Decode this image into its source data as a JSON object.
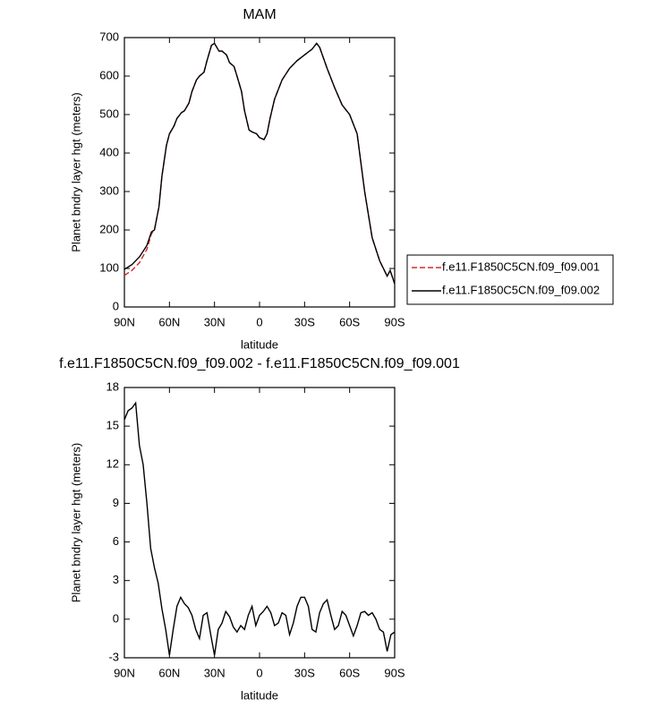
{
  "chart_data": [
    {
      "type": "line",
      "title": "MAM",
      "xlabel": "latitude",
      "ylabel": "Planet bndry layer hgt (meters)",
      "x": [
        90,
        85,
        80,
        75,
        72,
        70,
        67,
        65,
        62,
        60,
        57,
        55,
        52,
        50,
        47,
        45,
        42,
        40,
        37,
        35,
        32,
        30,
        27,
        25,
        22,
        20,
        17,
        15,
        12,
        10,
        7,
        5,
        2,
        0,
        -3,
        -5,
        -7,
        -10,
        -15,
        -20,
        -25,
        -30,
        -35,
        -38,
        -40,
        -45,
        -50,
        -55,
        -60,
        -65,
        -70,
        -75,
        -80,
        -85,
        -87,
        -90
      ],
      "series": [
        {
          "name": "f.e11.F1850C5CN.f09_f09.001",
          "color": "#d42a2a",
          "dash": "dashed",
          "values": [
            82,
            95,
            115,
            150,
            190,
            200,
            260,
            340,
            420,
            450,
            470,
            490,
            505,
            510,
            530,
            560,
            590,
            600,
            610,
            640,
            680,
            685,
            665,
            665,
            655,
            635,
            625,
            600,
            560,
            510,
            460,
            455,
            450,
            440,
            435,
            450,
            490,
            540,
            590,
            620,
            640,
            655,
            670,
            685,
            675,
            620,
            570,
            525,
            500,
            450,
            300,
            180,
            120,
            80,
            95,
            60
          ]
        },
        {
          "name": "f.e11.F1850C5CN.f09_f09.002",
          "color": "#000000",
          "dash": "solid",
          "values": [
            98,
            110,
            130,
            160,
            195,
            200,
            260,
            340,
            420,
            450,
            470,
            490,
            505,
            510,
            530,
            560,
            590,
            600,
            610,
            640,
            680,
            685,
            665,
            665,
            655,
            635,
            625,
            600,
            560,
            510,
            460,
            455,
            450,
            440,
            435,
            450,
            490,
            540,
            590,
            620,
            640,
            655,
            670,
            685,
            675,
            620,
            570,
            525,
            500,
            450,
            300,
            180,
            120,
            80,
            95,
            60
          ]
        }
      ],
      "xlim": [
        90,
        -90
      ],
      "xticks": [
        {
          "value": 90,
          "label": "90N"
        },
        {
          "value": 60,
          "label": "60N"
        },
        {
          "value": 30,
          "label": "30N"
        },
        0,
        {
          "value": -30,
          "label": "30S"
        },
        {
          "value": -60,
          "label": "60S"
        },
        {
          "value": -90,
          "label": "90S"
        }
      ],
      "ylim": [
        0,
        700
      ],
      "yticks": [
        0,
        100,
        200,
        300,
        400,
        500,
        600,
        700
      ],
      "legend": "right"
    },
    {
      "type": "line",
      "title": "f.e11.F1850C5CN.f09_f09.002 - f.e11.F1850C5CN.f09_f09.001",
      "xlabel": "latitude",
      "ylabel": "Planet bndry layer hgt (meters)",
      "x": [
        90,
        87.5,
        85,
        82.5,
        80,
        77.5,
        75,
        72.5,
        70,
        67.5,
        65,
        62.5,
        60,
        57.5,
        55,
        52.5,
        50,
        47.5,
        45,
        42.5,
        40,
        37.5,
        35,
        32.5,
        30,
        27.5,
        25,
        22.5,
        20,
        17.5,
        15,
        12.5,
        10,
        7.5,
        5,
        2.5,
        0,
        -2.5,
        -5,
        -7.5,
        -10,
        -12.5,
        -15,
        -17.5,
        -20,
        -22.5,
        -25,
        -27.5,
        -30,
        -32.5,
        -35,
        -37.5,
        -40,
        -42.5,
        -45,
        -47.5,
        -50,
        -52.5,
        -55,
        -57.5,
        -60,
        -62.5,
        -65,
        -67.5,
        -70,
        -72.5,
        -75,
        -77.5,
        -80,
        -82.5,
        -85,
        -87.5,
        -90
      ],
      "values": [
        15.5,
        16.2,
        16.4,
        16.8,
        13.5,
        12,
        9,
        5.5,
        4,
        2.8,
        0.8,
        -0.8,
        -2.8,
        -0.8,
        1,
        1.7,
        1.2,
        0.9,
        0.3,
        -0.8,
        -1.5,
        0.3,
        0.5,
        -1.2,
        -2.8,
        -0.8,
        -0.3,
        0.6,
        0.2,
        -0.6,
        -1.0,
        -0.5,
        -0.8,
        0.3,
        1.0,
        -0.5,
        0.3,
        0.6,
        1.0,
        0.5,
        -0.5,
        -0.3,
        0.5,
        0.3,
        -1.2,
        -0.3,
        1.0,
        1.7,
        1.7,
        1.0,
        -0.8,
        -1.0,
        0.5,
        1.2,
        1.5,
        0.3,
        -0.8,
        -0.5,
        0.6,
        0.3,
        -0.5,
        -1.3,
        -0.5,
        0.5,
        0.6,
        0.3,
        0.5,
        0.0,
        -0.8,
        -1.0,
        -2.5,
        -1.2,
        -1.0
      ],
      "color": "#000000",
      "xlim": [
        90,
        -90
      ],
      "xticks": [
        {
          "value": 90,
          "label": "90N"
        },
        {
          "value": 60,
          "label": "60N"
        },
        {
          "value": 30,
          "label": "30N"
        },
        0,
        {
          "value": -30,
          "label": "30S"
        },
        {
          "value": -60,
          "label": "60S"
        },
        {
          "value": -90,
          "label": "90S"
        }
      ],
      "ylim": [
        -3,
        18
      ],
      "yticks": [
        -3,
        0,
        3,
        6,
        9,
        12,
        15,
        18
      ]
    }
  ]
}
